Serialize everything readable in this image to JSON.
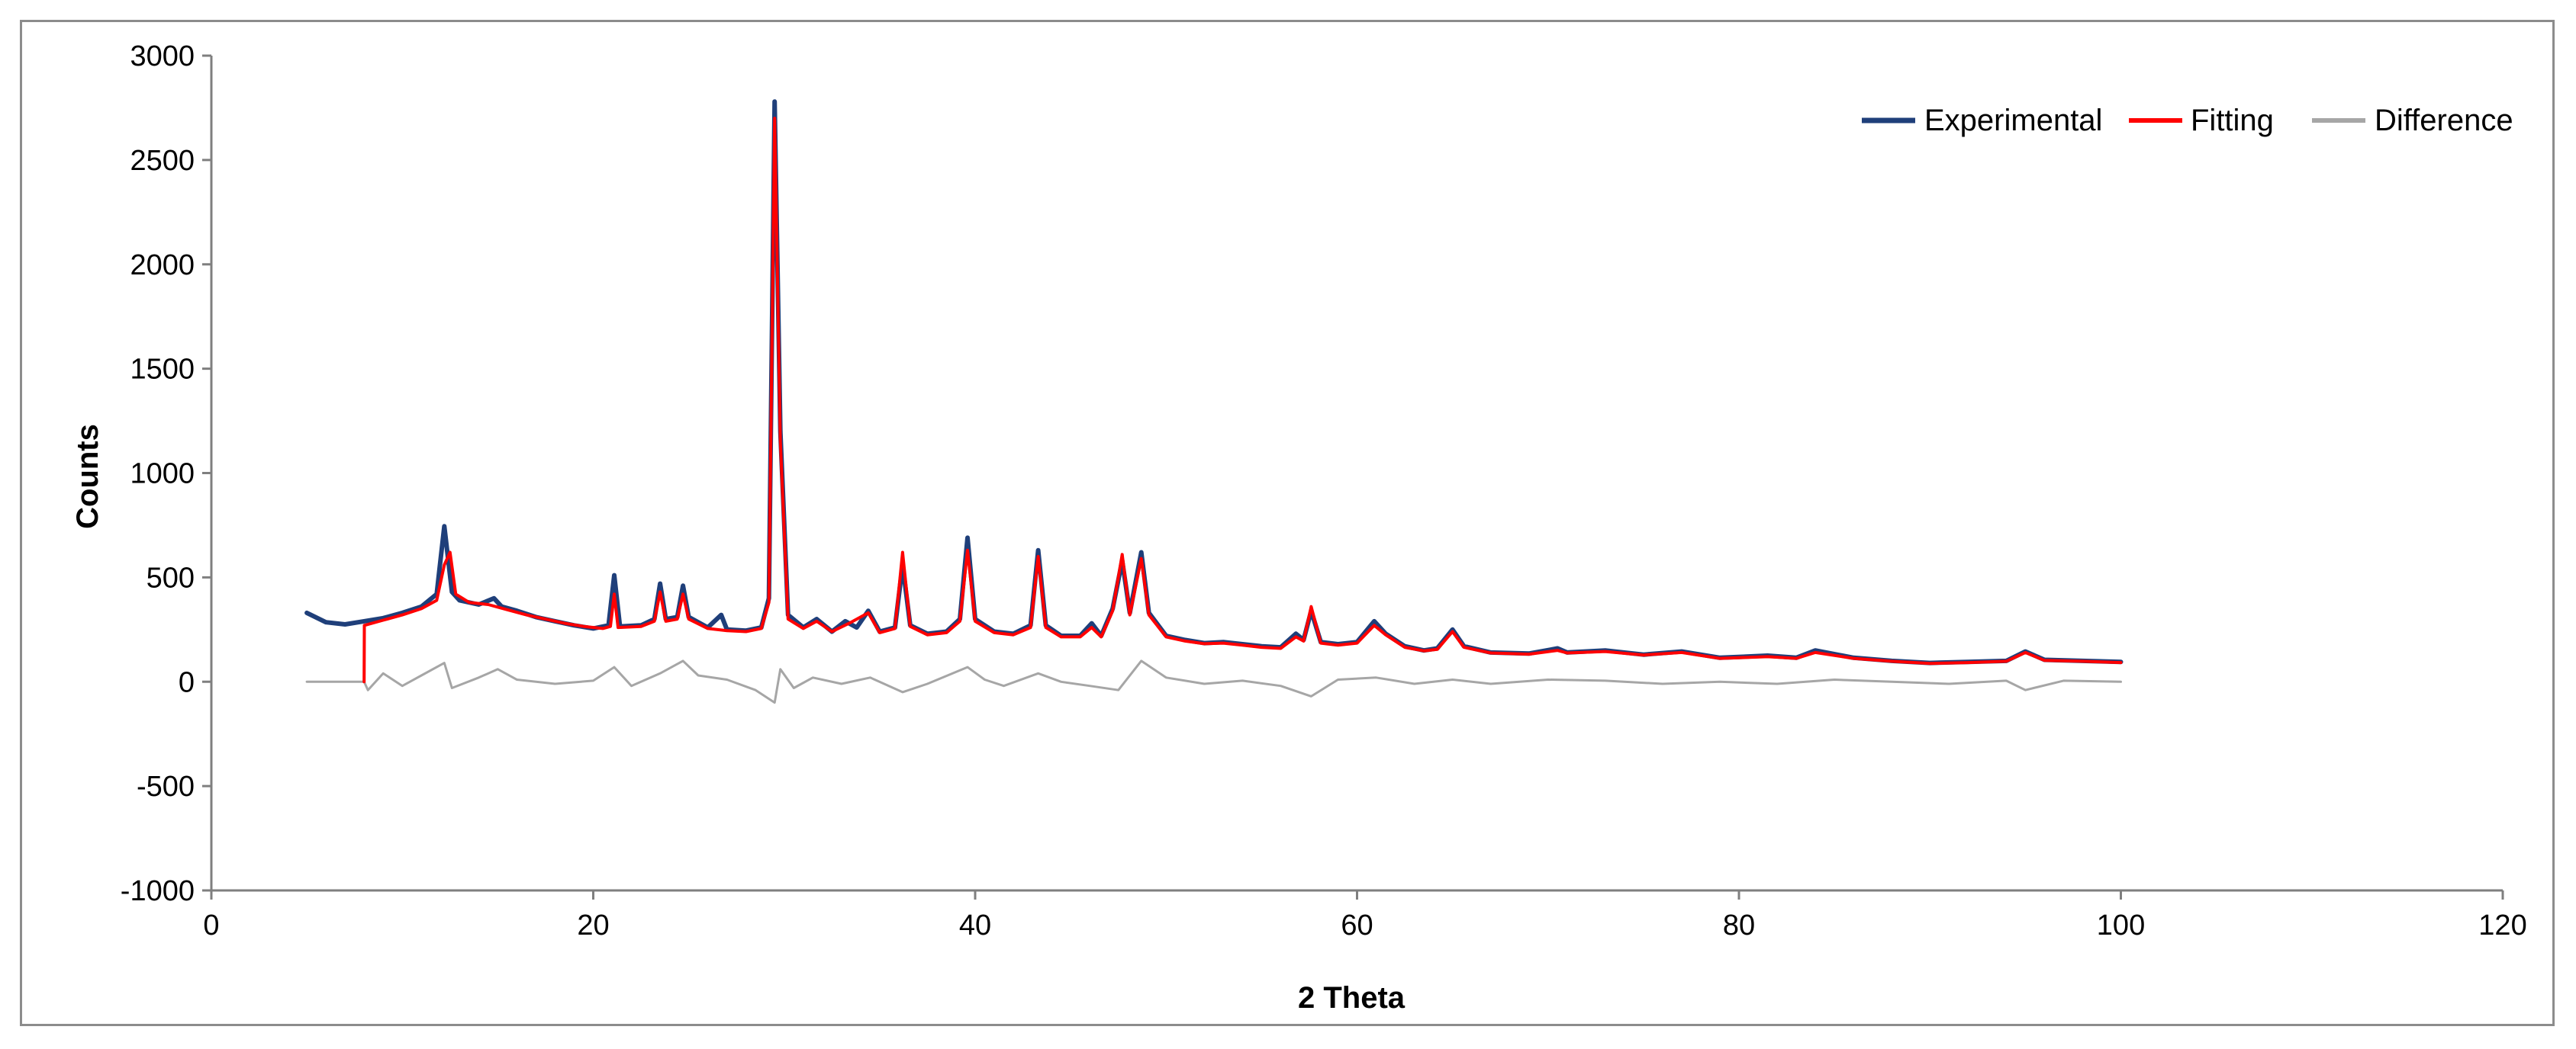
{
  "chart_data": {
    "type": "line",
    "title": "",
    "xlabel": "2 Theta",
    "ylabel": "Counts",
    "xlim": [
      0,
      120
    ],
    "ylim": [
      -1000,
      3000
    ],
    "x_ticks": [
      0,
      20,
      40,
      60,
      80,
      100,
      120
    ],
    "y_ticks": [
      -1000,
      -500,
      0,
      500,
      1000,
      1500,
      2000,
      2500,
      3000
    ],
    "grid": false,
    "legend_position": "top-right",
    "series": [
      {
        "name": "Experimental",
        "color": "#1f3f7a",
        "points": [
          [
            5,
            330
          ],
          [
            6,
            285
          ],
          [
            7,
            275
          ],
          [
            8,
            290
          ],
          [
            9,
            305
          ],
          [
            10,
            330
          ],
          [
            11,
            360
          ],
          [
            11.8,
            420
          ],
          [
            12.2,
            745
          ],
          [
            12.6,
            430
          ],
          [
            13,
            390
          ],
          [
            14,
            370
          ],
          [
            14.8,
            400
          ],
          [
            15.2,
            360
          ],
          [
            16,
            340
          ],
          [
            17,
            310
          ],
          [
            18,
            290
          ],
          [
            19,
            270
          ],
          [
            20,
            255
          ],
          [
            20.8,
            270
          ],
          [
            21.1,
            510
          ],
          [
            21.4,
            265
          ],
          [
            22.5,
            270
          ],
          [
            23.2,
            300
          ],
          [
            23.5,
            470
          ],
          [
            23.8,
            300
          ],
          [
            24.4,
            310
          ],
          [
            24.7,
            460
          ],
          [
            25.0,
            310
          ],
          [
            26,
            260
          ],
          [
            26.7,
            320
          ],
          [
            27,
            250
          ],
          [
            28,
            245
          ],
          [
            28.8,
            260
          ],
          [
            29.2,
            400
          ],
          [
            29.5,
            2780
          ],
          [
            29.8,
            1200
          ],
          [
            30.2,
            320
          ],
          [
            31,
            260
          ],
          [
            31.7,
            300
          ],
          [
            32.5,
            240
          ],
          [
            33.2,
            290
          ],
          [
            33.8,
            260
          ],
          [
            34.4,
            340
          ],
          [
            35,
            240
          ],
          [
            35.8,
            260
          ],
          [
            36.2,
            560
          ],
          [
            36.6,
            270
          ],
          [
            37.5,
            230
          ],
          [
            38.5,
            240
          ],
          [
            39.2,
            300
          ],
          [
            39.6,
            690
          ],
          [
            40.0,
            300
          ],
          [
            41,
            240
          ],
          [
            42,
            230
          ],
          [
            42.9,
            270
          ],
          [
            43.3,
            630
          ],
          [
            43.7,
            270
          ],
          [
            44.5,
            220
          ],
          [
            45.5,
            220
          ],
          [
            46.1,
            280
          ],
          [
            46.6,
            220
          ],
          [
            47.2,
            350
          ],
          [
            47.7,
            580
          ],
          [
            48.1,
            330
          ],
          [
            48.7,
            620
          ],
          [
            49.1,
            330
          ],
          [
            50,
            220
          ],
          [
            51,
            200
          ],
          [
            52,
            185
          ],
          [
            53,
            190
          ],
          [
            54,
            180
          ],
          [
            55,
            170
          ],
          [
            56,
            165
          ],
          [
            56.8,
            230
          ],
          [
            57.2,
            200
          ],
          [
            57.6,
            340
          ],
          [
            58.1,
            190
          ],
          [
            59,
            180
          ],
          [
            60,
            190
          ],
          [
            60.9,
            290
          ],
          [
            61.5,
            230
          ],
          [
            62.5,
            170
          ],
          [
            63.5,
            150
          ],
          [
            64.2,
            160
          ],
          [
            65,
            250
          ],
          [
            65.6,
            170
          ],
          [
            67,
            140
          ],
          [
            69,
            135
          ],
          [
            70.5,
            160
          ],
          [
            71,
            140
          ],
          [
            73,
            150
          ],
          [
            75,
            130
          ],
          [
            77,
            145
          ],
          [
            79,
            115
          ],
          [
            81.5,
            125
          ],
          [
            83,
            115
          ],
          [
            84,
            150
          ],
          [
            86,
            115
          ],
          [
            88,
            100
          ],
          [
            90,
            90
          ],
          [
            92,
            95
          ],
          [
            94,
            100
          ],
          [
            95,
            145
          ],
          [
            96,
            105
          ],
          [
            98,
            100
          ],
          [
            100,
            95
          ]
        ]
      },
      {
        "name": "Fitting",
        "color": "#ff0000",
        "points": [
          [
            8,
            0
          ],
          [
            8.01,
            270
          ],
          [
            9,
            295
          ],
          [
            10,
            320
          ],
          [
            11,
            350
          ],
          [
            11.8,
            390
          ],
          [
            12.2,
            560
          ],
          [
            12.5,
            620
          ],
          [
            12.8,
            420
          ],
          [
            13.5,
            380
          ],
          [
            14.5,
            370
          ],
          [
            15.5,
            345
          ],
          [
            16.5,
            320
          ],
          [
            17.5,
            300
          ],
          [
            18.5,
            280
          ],
          [
            19.5,
            265
          ],
          [
            20.5,
            255
          ],
          [
            20.9,
            265
          ],
          [
            21.1,
            420
          ],
          [
            21.3,
            260
          ],
          [
            22.5,
            265
          ],
          [
            23.2,
            290
          ],
          [
            23.5,
            430
          ],
          [
            23.8,
            290
          ],
          [
            24.4,
            300
          ],
          [
            24.7,
            420
          ],
          [
            25.0,
            300
          ],
          [
            26,
            255
          ],
          [
            27,
            245
          ],
          [
            28,
            240
          ],
          [
            28.8,
            255
          ],
          [
            29.2,
            380
          ],
          [
            29.5,
            2700
          ],
          [
            29.8,
            1150
          ],
          [
            30.2,
            300
          ],
          [
            31,
            255
          ],
          [
            31.7,
            290
          ],
          [
            32.5,
            240
          ],
          [
            33.4,
            280
          ],
          [
            34.4,
            330
          ],
          [
            35,
            235
          ],
          [
            35.8,
            255
          ],
          [
            36.2,
            620
          ],
          [
            36.6,
            265
          ],
          [
            37.5,
            225
          ],
          [
            38.5,
            235
          ],
          [
            39.2,
            290
          ],
          [
            39.6,
            630
          ],
          [
            40.0,
            290
          ],
          [
            41,
            235
          ],
          [
            42,
            225
          ],
          [
            42.9,
            260
          ],
          [
            43.3,
            600
          ],
          [
            43.7,
            260
          ],
          [
            44.5,
            215
          ],
          [
            45.5,
            215
          ],
          [
            46.1,
            260
          ],
          [
            46.6,
            215
          ],
          [
            47.2,
            340
          ],
          [
            47.7,
            610
          ],
          [
            48.1,
            320
          ],
          [
            48.7,
            590
          ],
          [
            49.1,
            320
          ],
          [
            50,
            215
          ],
          [
            51,
            195
          ],
          [
            52,
            182
          ],
          [
            53,
            185
          ],
          [
            54,
            175
          ],
          [
            55,
            165
          ],
          [
            56,
            160
          ],
          [
            56.8,
            215
          ],
          [
            57.2,
            195
          ],
          [
            57.6,
            360
          ],
          [
            58.1,
            185
          ],
          [
            59,
            175
          ],
          [
            60,
            185
          ],
          [
            60.9,
            270
          ],
          [
            61.5,
            225
          ],
          [
            62.5,
            165
          ],
          [
            63.5,
            148
          ],
          [
            64.2,
            155
          ],
          [
            65,
            240
          ],
          [
            65.6,
            165
          ],
          [
            67,
            138
          ],
          [
            69,
            132
          ],
          [
            70.5,
            150
          ],
          [
            71,
            138
          ],
          [
            73,
            145
          ],
          [
            75,
            128
          ],
          [
            77,
            140
          ],
          [
            79,
            112
          ],
          [
            81.5,
            120
          ],
          [
            83,
            112
          ],
          [
            84,
            140
          ],
          [
            86,
            112
          ],
          [
            88,
            98
          ],
          [
            90,
            88
          ],
          [
            92,
            92
          ],
          [
            94,
            98
          ],
          [
            95,
            140
          ],
          [
            96,
            102
          ],
          [
            98,
            98
          ],
          [
            100,
            92
          ]
        ]
      },
      {
        "name": "Difference",
        "color": "#a6a6a6",
        "points": [
          [
            5,
            0
          ],
          [
            8,
            0
          ],
          [
            8.2,
            -40
          ],
          [
            9,
            40
          ],
          [
            10,
            -20
          ],
          [
            11,
            30
          ],
          [
            12.2,
            90
          ],
          [
            12.6,
            -30
          ],
          [
            14,
            20
          ],
          [
            15,
            60
          ],
          [
            16,
            10
          ],
          [
            18,
            -10
          ],
          [
            20,
            5
          ],
          [
            21.1,
            70
          ],
          [
            22,
            -20
          ],
          [
            23.5,
            40
          ],
          [
            24.7,
            100
          ],
          [
            25.5,
            30
          ],
          [
            27,
            10
          ],
          [
            28.5,
            -40
          ],
          [
            29.5,
            -100
          ],
          [
            29.8,
            60
          ],
          [
            30.5,
            -30
          ],
          [
            31.5,
            20
          ],
          [
            33,
            -10
          ],
          [
            34.5,
            20
          ],
          [
            36.2,
            -50
          ],
          [
            37.5,
            -10
          ],
          [
            39.6,
            70
          ],
          [
            40.5,
            10
          ],
          [
            41.5,
            -20
          ],
          [
            43.3,
            40
          ],
          [
            44.5,
            0
          ],
          [
            46,
            -20
          ],
          [
            47.5,
            -40
          ],
          [
            48.7,
            100
          ],
          [
            50,
            20
          ],
          [
            52,
            -10
          ],
          [
            54,
            5
          ],
          [
            56,
            -20
          ],
          [
            57.6,
            -70
          ],
          [
            59,
            10
          ],
          [
            61,
            20
          ],
          [
            63,
            -10
          ],
          [
            65,
            10
          ],
          [
            67,
            -10
          ],
          [
            70,
            10
          ],
          [
            73,
            5
          ],
          [
            76,
            -10
          ],
          [
            79,
            0
          ],
          [
            82,
            -10
          ],
          [
            85,
            10
          ],
          [
            88,
            0
          ],
          [
            91,
            -10
          ],
          [
            94,
            5
          ],
          [
            95,
            -40
          ],
          [
            97,
            5
          ],
          [
            100,
            0
          ]
        ]
      }
    ]
  }
}
